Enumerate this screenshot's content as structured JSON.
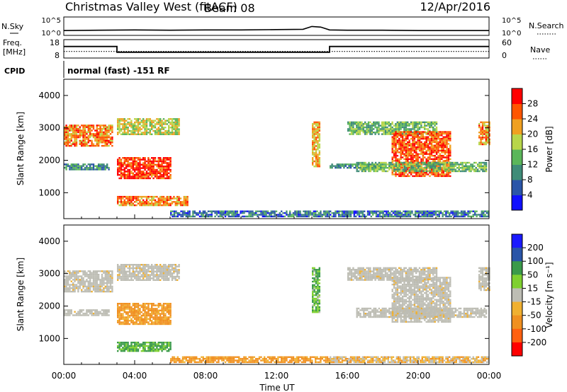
{
  "header": {
    "station": "Christmas Valley West (fitACF)",
    "beam": "Beam 08",
    "date": "12/Apr/2016"
  },
  "strip_labels": {
    "noise_sky": "N.Sky",
    "noise_search": "N.Search",
    "freq_line1": "Freq.",
    "freq_line2": "[MHz]",
    "nave": "Nave",
    "cpid": "CPID",
    "cpid_text": "normal (fast) -151 RF"
  },
  "strip_ticks": {
    "noise_left": [
      "10^5",
      "10^0"
    ],
    "noise_right": [
      "10^5",
      "10^0"
    ],
    "freq_left": [
      "18",
      "8"
    ],
    "freq_right": [
      "60",
      "0"
    ]
  },
  "colors": {
    "frame": "#000000",
    "power_scale": [
      "#1010ff",
      "#2a55a8",
      "#3f8c78",
      "#5bb65a",
      "#b8d64a",
      "#f0a020",
      "#ff5500",
      "#ff0000"
    ],
    "velocity_scale": [
      "#1a1aff",
      "#2a55a8",
      "#3a9a4a",
      "#7fd030",
      "#bdbdb4",
      "#f0b030",
      "#f09020",
      "#ff6010",
      "#ff0000"
    ],
    "velocity_gray": "#bdbdb4"
  },
  "chart_data": [
    {
      "type": "heatmap",
      "panel": "power",
      "xlabel": "",
      "ylabel": "Slant Range [km]",
      "ylim": [
        200,
        4500
      ],
      "yticks": [
        "1000",
        "2000",
        "3000",
        "4000"
      ],
      "xlim": [
        0,
        24
      ],
      "colorbar_label": "Power [dB]",
      "colorbar_ticks": [
        "4",
        "8",
        "12",
        "16",
        "20",
        "24",
        "28"
      ],
      "colorbar_range": [
        0,
        32
      ],
      "features": [
        {
          "t0": 0.0,
          "t1": 2.7,
          "r0": 2450,
          "r1": 3100,
          "value": 24
        },
        {
          "t0": 0.0,
          "t1": 2.5,
          "r0": 1700,
          "r1": 1900,
          "value": 10
        },
        {
          "t0": 3.0,
          "t1": 6.0,
          "r0": 1450,
          "r1": 2100,
          "value": 28
        },
        {
          "t0": 3.0,
          "t1": 6.5,
          "r0": 2800,
          "r1": 3300,
          "value": 18
        },
        {
          "t0": 3.0,
          "t1": 7.0,
          "r0": 600,
          "r1": 900,
          "value": 24
        },
        {
          "t0": 6.0,
          "t1": 15.0,
          "r0": 250,
          "r1": 450,
          "value": 8
        },
        {
          "t0": 14.0,
          "t1": 14.4,
          "r0": 1800,
          "r1": 3200,
          "value": 22
        },
        {
          "t0": 15.0,
          "t1": 17.8,
          "r0": 1750,
          "r1": 1900,
          "value": 10
        },
        {
          "t0": 16.0,
          "t1": 21.0,
          "r0": 2800,
          "r1": 3200,
          "value": 14
        },
        {
          "t0": 18.5,
          "t1": 21.8,
          "r0": 1500,
          "r1": 2900,
          "value": 26
        },
        {
          "t0": 16.5,
          "t1": 23.8,
          "r0": 1650,
          "r1": 1950,
          "value": 14
        },
        {
          "t0": 15.0,
          "t1": 24.0,
          "r0": 250,
          "r1": 450,
          "value": 8
        },
        {
          "t0": 23.4,
          "t1": 24.0,
          "r0": 2500,
          "r1": 3200,
          "value": 24
        }
      ]
    },
    {
      "type": "heatmap",
      "panel": "velocity",
      "xlabel": "Time UT",
      "ylabel": "Slant Range [km]",
      "ylim": [
        200,
        4500
      ],
      "yticks": [
        "1000",
        "2000",
        "3000",
        "4000"
      ],
      "xlim": [
        0,
        24
      ],
      "xticks": [
        "00:00",
        "04:00",
        "08:00",
        "12:00",
        "16:00",
        "20:00",
        "00:00"
      ],
      "colorbar_label": "Velocity [m s⁻¹]",
      "colorbar_ticks": [
        "200",
        "100",
        "50",
        "15",
        "-15",
        "-50",
        "-100",
        "-200"
      ],
      "features": [
        {
          "t0": 0.0,
          "t1": 2.7,
          "r0": 2450,
          "r1": 3100,
          "value": 0
        },
        {
          "t0": 0.0,
          "t1": 2.5,
          "r0": 1700,
          "r1": 1900,
          "value": 0
        },
        {
          "t0": 3.0,
          "t1": 6.0,
          "r0": 1450,
          "r1": 2100,
          "value": -40
        },
        {
          "t0": 3.0,
          "t1": 6.5,
          "r0": 2800,
          "r1": 3300,
          "value": 0
        },
        {
          "t0": 3.0,
          "t1": 6.0,
          "r0": 600,
          "r1": 900,
          "value": 40
        },
        {
          "t0": 6.0,
          "t1": 15.0,
          "r0": 250,
          "r1": 450,
          "value": -40
        },
        {
          "t0": 14.0,
          "t1": 14.4,
          "r0": 1800,
          "r1": 3200,
          "value": 30
        },
        {
          "t0": 16.0,
          "t1": 21.0,
          "r0": 2800,
          "r1": 3200,
          "value": 0
        },
        {
          "t0": 18.5,
          "t1": 21.8,
          "r0": 1500,
          "r1": 2900,
          "value": 0
        },
        {
          "t0": 16.5,
          "t1": 23.8,
          "r0": 1650,
          "r1": 1950,
          "value": 0
        },
        {
          "t0": 15.0,
          "t1": 24.0,
          "r0": 250,
          "r1": 450,
          "value": -20
        },
        {
          "t0": 23.4,
          "t1": 24.0,
          "r0": 2500,
          "r1": 3200,
          "value": 0
        }
      ]
    },
    {
      "type": "line",
      "panel": "frequency",
      "ylabel": "Freq. [MHz]",
      "ylim": [
        8,
        18
      ],
      "series": [
        {
          "x": [
            0,
            3.0,
            3.0,
            15.0,
            15.0,
            24
          ],
          "values": [
            14.5,
            14.5,
            10.8,
            10.8,
            14.5,
            14.5
          ]
        }
      ],
      "nave_ylim": [
        0,
        60
      ],
      "nave_level": 20
    },
    {
      "type": "line",
      "panel": "noise",
      "ylim_log": [
        0,
        5
      ],
      "series": [
        {
          "x": [
            0,
            2,
            4,
            6,
            8,
            10,
            12,
            13.5,
            14,
            14.5,
            15,
            16,
            18,
            20,
            22,
            24
          ],
          "values": [
            1.1,
            1.2,
            1.3,
            1.2,
            1.3,
            1.3,
            1.4,
            1.5,
            2.4,
            2.2,
            1.3,
            1.2,
            1.2,
            1.1,
            1.1,
            1.1
          ]
        }
      ]
    }
  ]
}
